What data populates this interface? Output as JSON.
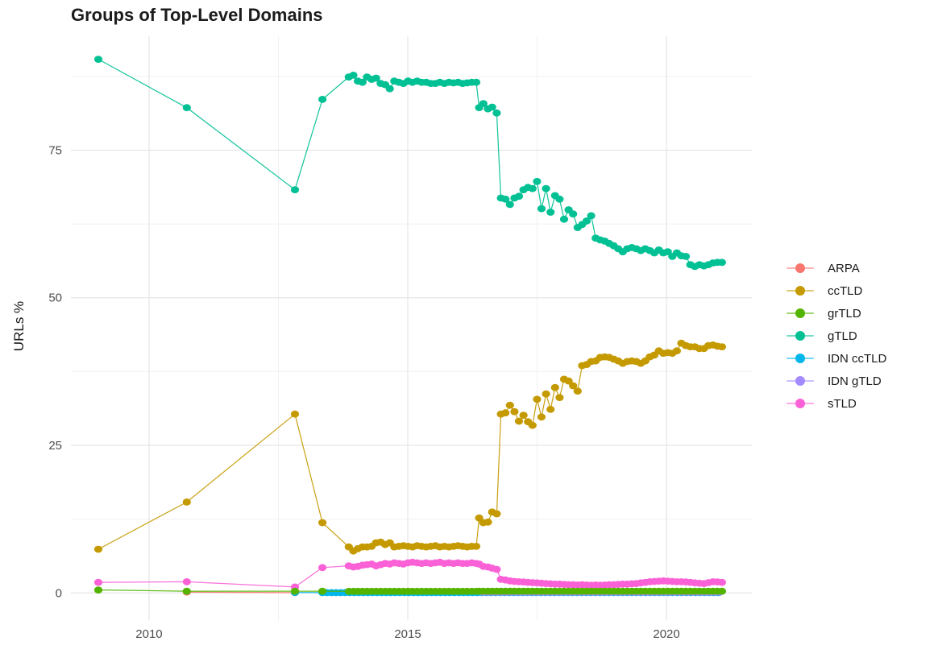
{
  "chart_data": {
    "type": "scatter",
    "title": "Groups of Top-Level Domains",
    "xlabel": "",
    "ylabel": "URLs %",
    "x_ticks": [
      2010,
      2015,
      2020
    ],
    "x_minor": [
      2012.5,
      2017.5
    ],
    "y_ticks": [
      0,
      25,
      50,
      75
    ],
    "y_minor": [
      12.5,
      37.5,
      62.5,
      87.5
    ],
    "xlim": [
      2008.49,
      2021.65
    ],
    "ylim": [
      -4.6,
      94.3
    ],
    "grid": true,
    "legend_position": "right",
    "draw_order": [
      "ARPA",
      "IDN ccTLD",
      "IDN gTLD",
      "ccTLD",
      "sTLD",
      "grTLD",
      "gTLD"
    ],
    "series": [
      {
        "name": "ARPA",
        "color": "#F8766D",
        "segments": [
          {
            "points": [
              [
                2010.73,
                0.15
              ],
              [
                2012.82,
                0.05
              ]
            ]
          }
        ]
      },
      {
        "name": "ccTLD",
        "color": "#C49A00",
        "segments": [
          {
            "points": [
              [
                2009.02,
                7.4
              ],
              [
                2010.73,
                15.4
              ],
              [
                2012.82,
                30.3
              ],
              [
                2013.35,
                11.9
              ]
            ]
          },
          {
            "start": 2013.86,
            "step": 0.088,
            "values": [
              7.8,
              7.1,
              7.5,
              7.8,
              7.8,
              7.9,
              8.5,
              8.6,
              8.2,
              8.5,
              7.8,
              7.9,
              8.0,
              7.9,
              7.8,
              8.0,
              7.9,
              7.8,
              7.9,
              8.0,
              7.8,
              7.9,
              7.8,
              7.9,
              8.0,
              7.9,
              7.8,
              7.9,
              7.9
            ]
          },
          {
            "points": [
              [
                2016.38,
                12.7
              ],
              [
                2016.46,
                11.9
              ],
              [
                2016.55,
                12.0
              ],
              [
                2016.63,
                13.7
              ],
              [
                2016.72,
                13.4
              ]
            ]
          },
          {
            "start": 2016.8,
            "step": 0.0872,
            "values": [
              30.3,
              30.5,
              31.8,
              30.7,
              29.1,
              30.1,
              29.0,
              28.4,
              32.8,
              29.8,
              33.7,
              31.1,
              34.8,
              33.1,
              36.2,
              35.9,
              35.1,
              34.2,
              38.5,
              38.7,
              39.2,
              39.3,
              39.9,
              40.0,
              39.9,
              39.6,
              39.3,
              38.9,
              39.2,
              39.3,
              39.2,
              38.9,
              39.3,
              40.0,
              40.3,
              41.0,
              40.6,
              40.7,
              40.6,
              41.0,
              42.3,
              41.9,
              41.7,
              41.7,
              41.4,
              41.4,
              41.9,
              42.0,
              41.8,
              41.7
            ]
          }
        ]
      },
      {
        "name": "grTLD",
        "color": "#53B400",
        "segments": [
          {
            "points": [
              [
                2009.02,
                0.5
              ],
              [
                2010.73,
                0.3
              ],
              [
                2012.82,
                0.3
              ],
              [
                2013.35,
                0.3
              ]
            ]
          },
          {
            "start": 2013.86,
            "step": 0.088,
            "const": 0.27,
            "count": 29
          },
          {
            "points": [
              [
                2016.38,
                0.3
              ],
              [
                2016.46,
                0.3
              ],
              [
                2016.55,
                0.3
              ],
              [
                2016.63,
                0.3
              ],
              [
                2016.72,
                0.3
              ]
            ]
          },
          {
            "start": 2016.8,
            "step": 0.0872,
            "const": 0.3,
            "count": 50
          }
        ]
      },
      {
        "name": "gTLD",
        "color": "#00C094",
        "segments": [
          {
            "points": [
              [
                2009.02,
                90.4
              ],
              [
                2010.73,
                82.2
              ],
              [
                2012.82,
                68.3
              ],
              [
                2013.35,
                83.6
              ]
            ]
          },
          {
            "start": 2013.86,
            "step": 0.088,
            "values": [
              87.4,
              87.7,
              86.7,
              86.5,
              87.4,
              87.0,
              87.2,
              86.3,
              86.1,
              85.4,
              86.7,
              86.5,
              86.3,
              86.7,
              86.5,
              86.7,
              86.5,
              86.5,
              86.3,
              86.3,
              86.5,
              86.3,
              86.5,
              86.4,
              86.5,
              86.3,
              86.4,
              86.5,
              86.5
            ]
          },
          {
            "points": [
              [
                2016.38,
                82.2
              ],
              [
                2016.46,
                82.9
              ],
              [
                2016.55,
                82.0
              ],
              [
                2016.63,
                82.3
              ],
              [
                2016.72,
                81.3
              ]
            ]
          },
          {
            "start": 2016.8,
            "step": 0.0872,
            "values": [
              66.9,
              66.7,
              65.8,
              66.9,
              67.2,
              68.3,
              68.7,
              68.5,
              69.7,
              65.1,
              68.5,
              64.5,
              67.3,
              66.7,
              63.3,
              64.9,
              64.2,
              61.9,
              62.4,
              63.0,
              63.9,
              60.1,
              59.8,
              59.6,
              59.2,
              58.8,
              58.3,
              57.8,
              58.3,
              58.5,
              58.3,
              58.0,
              58.3,
              58.0,
              57.6,
              58.1,
              57.6,
              57.8,
              57.0,
              57.6,
              57.1,
              57.0,
              55.6,
              55.3,
              55.6,
              55.4,
              55.6,
              55.9,
              56.0,
              56.0
            ]
          }
        ]
      },
      {
        "name": "IDN ccTLD",
        "color": "#00B6EB",
        "segments": [
          {
            "points": [
              [
                2012.82,
                0.08
              ]
            ]
          },
          {
            "start": 2013.35,
            "step": 0.088,
            "const": 0.05,
            "count": 88
          }
        ]
      },
      {
        "name": "IDN gTLD",
        "color": "#A58AFF",
        "segments": [
          {
            "start": 2016.45,
            "step": 0.088,
            "const": 0.12,
            "count": 53
          }
        ]
      },
      {
        "name": "sTLD",
        "color": "#FB61D7",
        "segments": [
          {
            "points": [
              [
                2009.02,
                1.8
              ],
              [
                2010.73,
                1.9
              ],
              [
                2012.82,
                1.0
              ],
              [
                2013.35,
                4.3
              ]
            ]
          },
          {
            "start": 2013.86,
            "step": 0.088,
            "values": [
              4.6,
              4.4,
              4.5,
              4.7,
              4.8,
              4.9,
              4.6,
              4.8,
              5.0,
              4.9,
              5.1,
              5.0,
              4.9,
              5.1,
              5.2,
              5.1,
              5.0,
              5.1,
              5.0,
              5.1,
              5.2,
              5.0,
              5.1,
              5.0,
              5.1,
              5.0,
              5.0,
              5.1,
              5.0
            ]
          },
          {
            "points": [
              [
                2016.38,
                4.9
              ],
              [
                2016.46,
                4.5
              ],
              [
                2016.55,
                4.4
              ],
              [
                2016.63,
                4.2
              ],
              [
                2016.72,
                4.0
              ]
            ]
          },
          {
            "start": 2016.8,
            "step": 0.0872,
            "values": [
              2.3,
              2.2,
              2.05,
              1.95,
              1.9,
              1.85,
              1.8,
              1.75,
              1.7,
              1.65,
              1.6,
              1.55,
              1.5,
              1.5,
              1.45,
              1.4,
              1.4,
              1.35,
              1.4,
              1.35,
              1.3,
              1.35,
              1.3,
              1.35,
              1.4,
              1.4,
              1.45,
              1.5,
              1.5,
              1.55,
              1.6,
              1.7,
              1.8,
              1.9,
              1.95,
              2.0,
              2.05,
              2.0,
              1.95,
              1.9,
              1.9,
              1.85,
              1.8,
              1.7,
              1.65,
              1.6,
              1.75,
              1.9,
              1.85,
              1.8
            ]
          }
        ]
      }
    ],
    "style": {
      "grid_major_color": "#e5e5e5",
      "grid_minor_color": "#f0f0f0",
      "tick_label_color": "#4d4d4d",
      "title_color": "#1c1c1c",
      "background": "#ffffff"
    }
  }
}
